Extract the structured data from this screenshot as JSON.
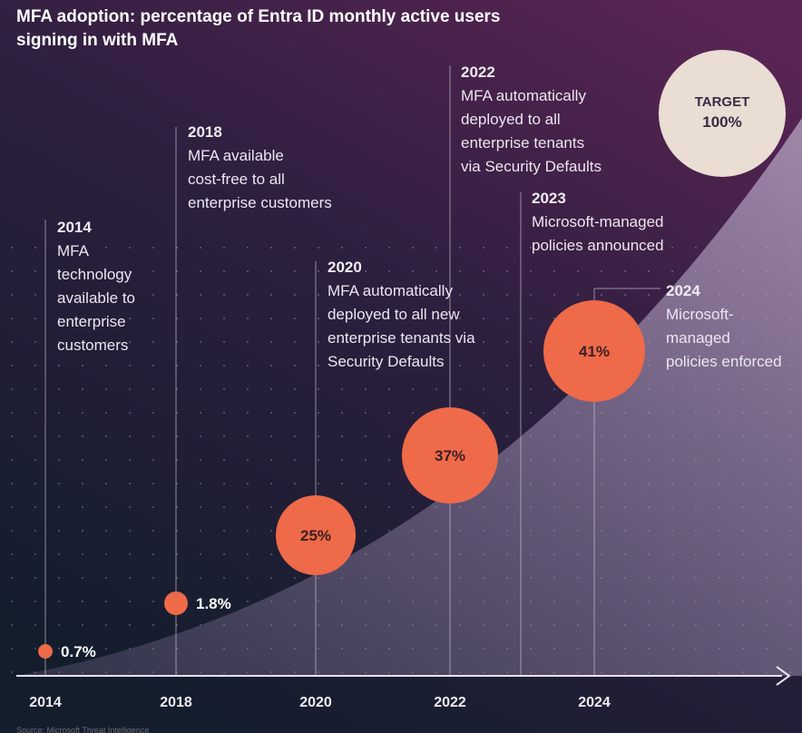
{
  "title": "MFA adoption: percentage of Entra ID monthly active users signing in with MFA",
  "target": {
    "label": "TARGET",
    "value": "100%"
  },
  "annotations": [
    {
      "year": "2014",
      "text": "MFA\ntechnology\navailable to\nenterprise\ncustomers"
    },
    {
      "year": "2018",
      "text": "MFA available\ncost-free to all\nenterprise customers"
    },
    {
      "year": "2020",
      "text": "MFA automatically\ndeployed to all new\nenterprise tenants via\nSecurity Defaults"
    },
    {
      "year": "2022",
      "text": "MFA automatically\ndeployed to all\nenterprise tenants\nvia Security Defaults"
    },
    {
      "year": "2023",
      "text": "Microsoft-managed\npolicies announced"
    },
    {
      "year": "2024",
      "text": "Microsoft-\nmanaged\npolicies enforced"
    }
  ],
  "colors": {
    "point": "#ee6a48",
    "target": "#e9ddd4",
    "background_top": "#54224f",
    "background_bottom": "#131d2c",
    "area": "#8c7aa3"
  },
  "chart_data": {
    "type": "scatter",
    "title": "MFA adoption: percentage of Entra ID monthly active users signing in with MFA",
    "xlabel": "",
    "ylabel": "",
    "x_ticks": [
      "2014",
      "2018",
      "2020",
      "2022",
      "2024"
    ],
    "xlim": [
      2014,
      2026
    ],
    "points": [
      {
        "x": 2014,
        "y": 0.7,
        "label": "0.7%"
      },
      {
        "x": 2018,
        "y": 1.8,
        "label": "1.8%"
      },
      {
        "x": 2020,
        "y": 25,
        "label": "25%"
      },
      {
        "x": 2022,
        "y": 37,
        "label": "37%"
      },
      {
        "x": 2024,
        "y": 41,
        "label": "41%"
      }
    ],
    "target": {
      "y": 100,
      "label": "100%"
    },
    "grid": true
  },
  "footer": "Source: Microsoft Threat Intelligence"
}
